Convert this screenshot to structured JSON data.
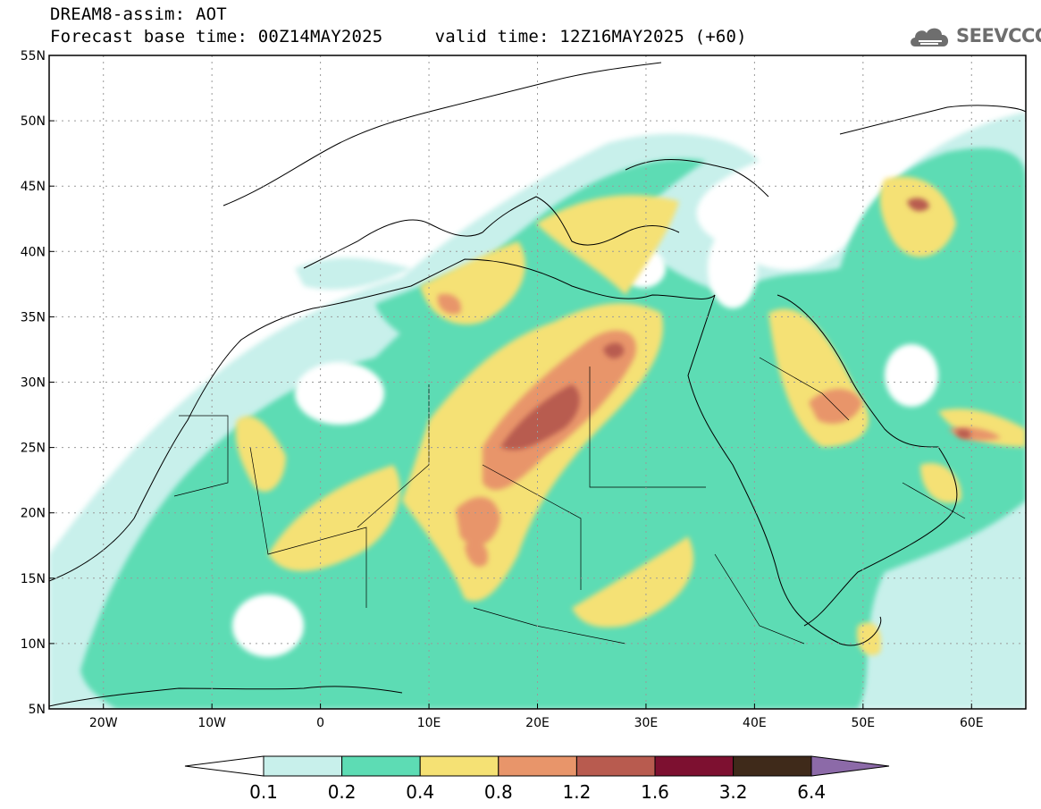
{
  "header": {
    "line1": "DREAM8-assim: AOT",
    "line2": "Forecast base time: 00Z14MAY2025     valid time: 12Z16MAY2025 (+60)"
  },
  "logo": {
    "text": "SEEVCCC",
    "icon": "cloud-icon"
  },
  "map": {
    "variable": "AOT",
    "lon_range": [
      -25,
      65
    ],
    "lat_range": [
      5,
      55
    ],
    "grid": true,
    "x_ticks": [
      "20W",
      "10W",
      "0",
      "10E",
      "20E",
      "30E",
      "40E",
      "50E",
      "60E"
    ],
    "y_ticks": [
      "55N",
      "50N",
      "45N",
      "40N",
      "35N",
      "30N",
      "25N",
      "20N",
      "15N",
      "10N",
      "5N"
    ]
  },
  "colorbar": {
    "labels": [
      "0.1",
      "0.2",
      "0.4",
      "0.8",
      "1.2",
      "1.6",
      "3.2",
      "6.4"
    ],
    "colors": [
      "#c8f0eb",
      "#5ddcb4",
      "#f5e174",
      "#e8956a",
      "#b85b4f",
      "#7d1030",
      "#3f2a1a",
      "#8c6aa8"
    ]
  },
  "colors": {
    "level1": "#c8f0eb",
    "level2": "#5ddcb4",
    "level3": "#f5e174",
    "level4": "#e8956a",
    "level5": "#b85b4f",
    "grid": "#9a9a9a"
  }
}
